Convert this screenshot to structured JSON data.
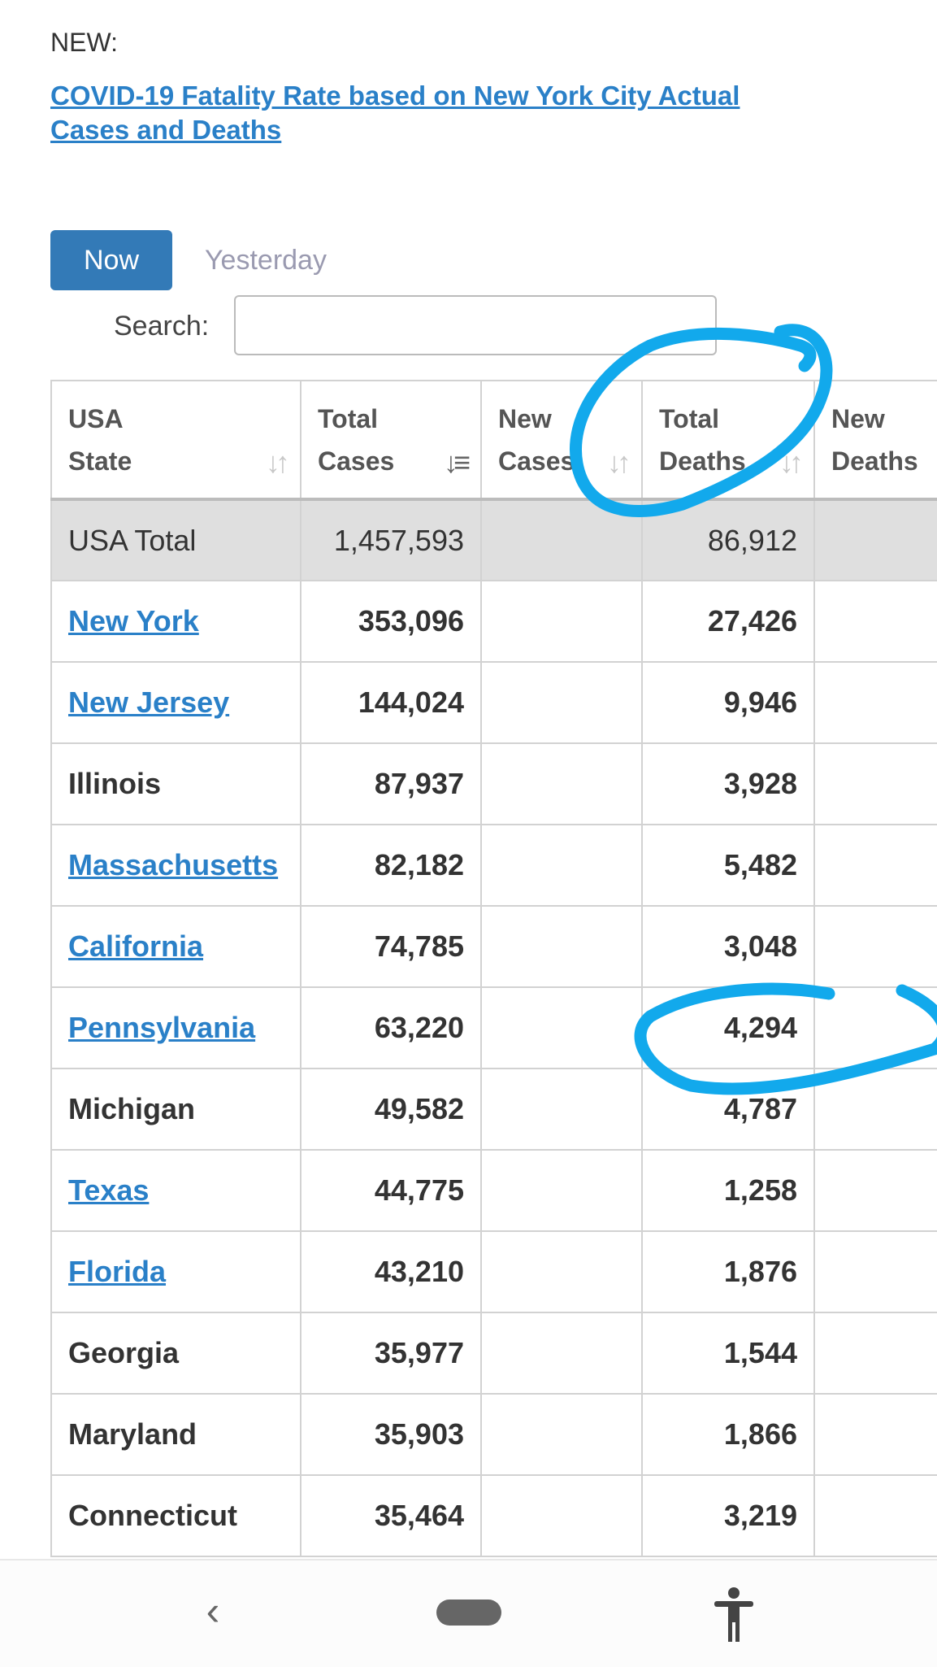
{
  "header": {
    "new_label": "NEW:",
    "link_text": "COVID-19 Fatality Rate based on New York City Actual Cases and Deaths"
  },
  "tabs": {
    "now": "Now",
    "yesterday": "Yesterday"
  },
  "search": {
    "label": "Search:",
    "value": ""
  },
  "table": {
    "headers": [
      {
        "line1": "USA",
        "line2": "State"
      },
      {
        "line1": "Total",
        "line2": "Cases"
      },
      {
        "line1": "New",
        "line2": "Cases"
      },
      {
        "line1": "Total",
        "line2": "Deaths"
      },
      {
        "line1": "New",
        "line2": "Deaths"
      }
    ],
    "total": {
      "state": "USA Total",
      "total_cases": "1,457,593",
      "new_cases": "",
      "total_deaths": "86,912",
      "new_deaths": ""
    },
    "rows": [
      {
        "state": "New York",
        "total_cases": "353,096",
        "total_deaths": "27,426"
      },
      {
        "state": "New Jersey",
        "total_cases": "144,024",
        "total_deaths": "9,946"
      },
      {
        "state": "Illinois",
        "total_cases": "87,937",
        "total_deaths": "3,928"
      },
      {
        "state": "Massachusetts",
        "total_cases": "82,182",
        "total_deaths": "5,482"
      },
      {
        "state": "California",
        "total_cases": "74,785",
        "total_deaths": "3,048"
      },
      {
        "state": "Pennsylvania",
        "total_cases": "63,220",
        "total_deaths": "4,294"
      },
      {
        "state": "Michigan",
        "total_cases": "49,582",
        "total_deaths": "4,787"
      },
      {
        "state": "Texas",
        "total_cases": "44,775",
        "total_deaths": "1,258"
      },
      {
        "state": "Florida",
        "total_cases": "43,210",
        "total_deaths": "1,876"
      },
      {
        "state": "Georgia",
        "total_cases": "35,977",
        "total_deaths": "1,544"
      },
      {
        "state": "Maryland",
        "total_cases": "35,903",
        "total_deaths": "1,866"
      },
      {
        "state": "Connecticut",
        "total_cases": "35,464",
        "total_deaths": "3,219"
      }
    ]
  },
  "colors": {
    "link": "#2a80c8",
    "button": "#337ab7",
    "annotation": "#12a9ec"
  },
  "navbar": {
    "icons": [
      "back-icon",
      "home-pill-icon",
      "accessibility-icon"
    ]
  }
}
